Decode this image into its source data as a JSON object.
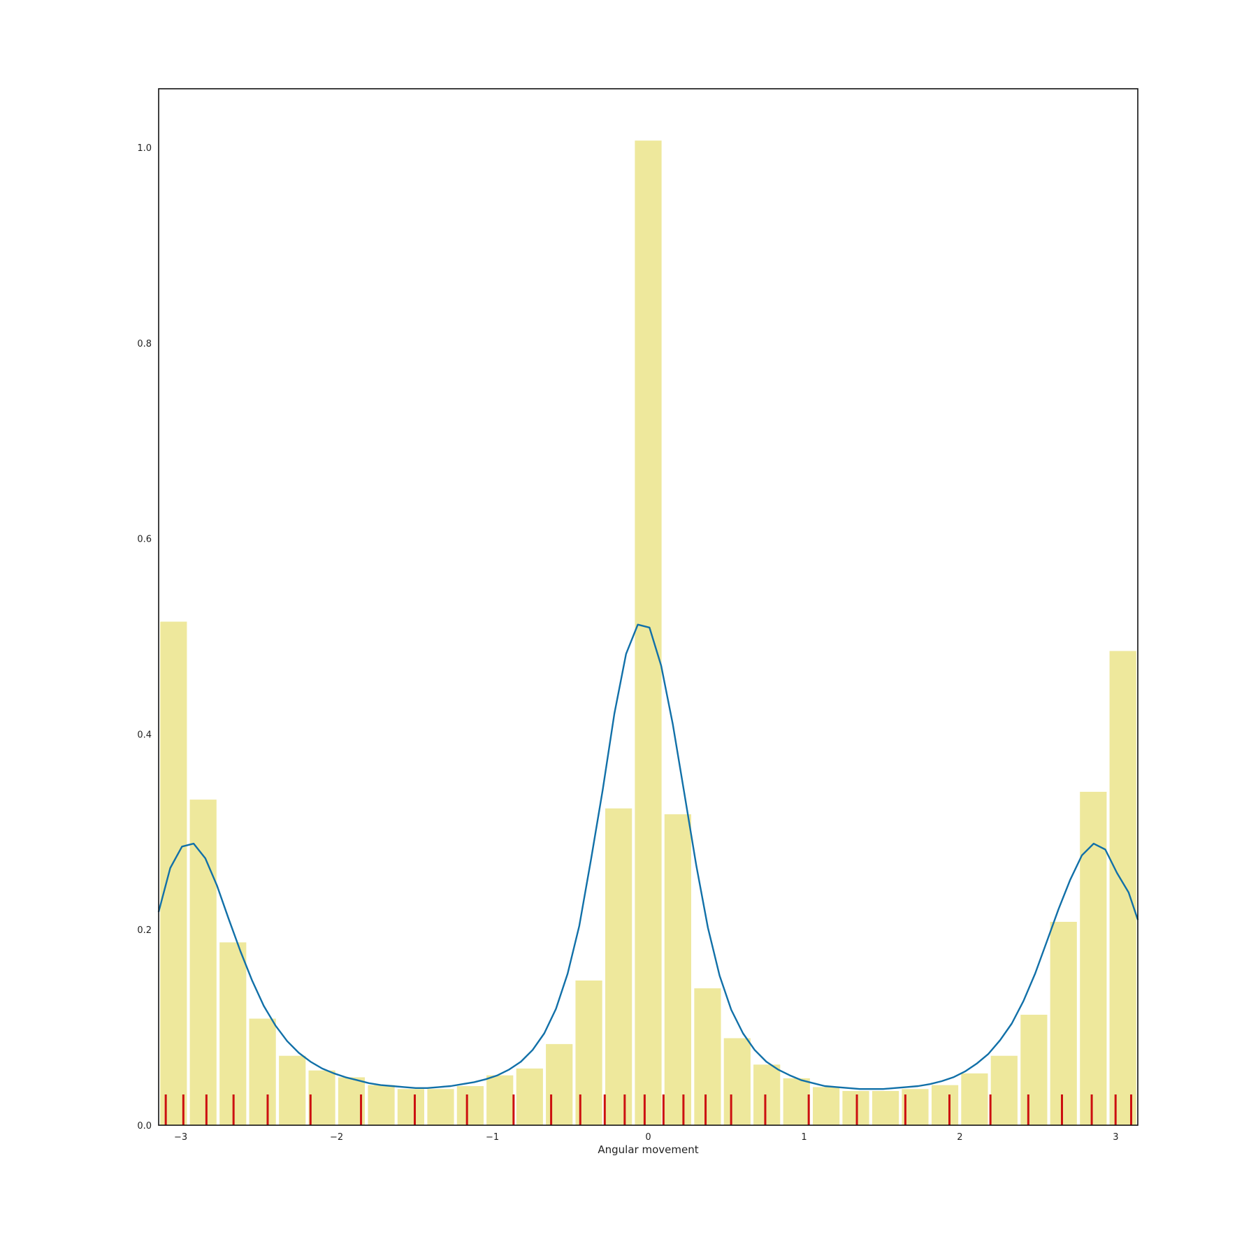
{
  "chart_data": {
    "type": "bar",
    "title": "",
    "xlabel": "Angular movement",
    "ylabel": "",
    "xlim": [
      -3.1416,
      3.1416
    ],
    "ylim": [
      0,
      1.06
    ],
    "grid": false,
    "xticks": [
      -3,
      -2,
      -1,
      0,
      1,
      2,
      3
    ],
    "xtick_labels": [
      "−3",
      "−2",
      "−1",
      "0",
      "1",
      "2",
      "3"
    ],
    "yticks": [
      0,
      0.2,
      0.4,
      0.6,
      0.8,
      1.0
    ],
    "ytick_labels": [
      "0.0",
      "0.2",
      "0.4",
      "0.6",
      "0.8",
      "1.0"
    ],
    "colors": {
      "bars": "#eee89c",
      "density_line": "#1170a8",
      "rug": "#cc1010"
    },
    "histogram": {
      "bin_width": 0.1904,
      "bar_fill": 0.9,
      "bin_centers": [
        -3.046,
        -2.856,
        -2.665,
        -2.475,
        -2.284,
        -2.094,
        -1.904,
        -1.713,
        -1.523,
        -1.332,
        -1.142,
        -0.952,
        -0.761,
        -0.571,
        -0.381,
        -0.19,
        0.0,
        0.19,
        0.381,
        0.571,
        0.761,
        0.952,
        1.142,
        1.332,
        1.523,
        1.713,
        1.904,
        2.094,
        2.284,
        2.475,
        2.665,
        2.856,
        3.046
      ],
      "values": [
        0.515,
        0.333,
        0.187,
        0.109,
        0.071,
        0.056,
        0.049,
        0.041,
        0.037,
        0.037,
        0.04,
        0.051,
        0.058,
        0.083,
        0.148,
        0.324,
        1.007,
        0.318,
        0.14,
        0.089,
        0.062,
        0.048,
        0.039,
        0.035,
        0.035,
        0.037,
        0.041,
        0.053,
        0.071,
        0.113,
        0.208,
        0.341,
        0.485
      ]
    },
    "density_line": {
      "x": [
        -3.142,
        -3.067,
        -2.992,
        -2.917,
        -2.842,
        -2.767,
        -2.692,
        -2.617,
        -2.542,
        -2.467,
        -2.392,
        -2.317,
        -2.242,
        -2.167,
        -2.092,
        -2.017,
        -1.942,
        -1.867,
        -1.792,
        -1.717,
        -1.642,
        -1.567,
        -1.492,
        -1.417,
        -1.342,
        -1.267,
        -1.192,
        -1.117,
        -1.042,
        -0.967,
        -0.892,
        -0.817,
        -0.742,
        -0.667,
        -0.592,
        -0.517,
        -0.442,
        -0.367,
        -0.292,
        -0.217,
        -0.142,
        -0.067,
        0.008,
        0.083,
        0.158,
        0.233,
        0.308,
        0.383,
        0.458,
        0.533,
        0.608,
        0.683,
        0.758,
        0.833,
        0.908,
        0.983,
        1.058,
        1.133,
        1.208,
        1.283,
        1.358,
        1.433,
        1.508,
        1.583,
        1.658,
        1.733,
        1.808,
        1.883,
        1.958,
        2.033,
        2.108,
        2.183,
        2.258,
        2.333,
        2.408,
        2.483,
        2.558,
        2.633,
        2.708,
        2.783,
        2.858,
        2.933,
        3.008,
        3.083,
        3.142
      ],
      "y": [
        0.218,
        0.263,
        0.285,
        0.288,
        0.273,
        0.245,
        0.211,
        0.178,
        0.148,
        0.122,
        0.102,
        0.086,
        0.074,
        0.065,
        0.058,
        0.053,
        0.049,
        0.046,
        0.043,
        0.041,
        0.04,
        0.039,
        0.038,
        0.038,
        0.039,
        0.04,
        0.042,
        0.044,
        0.047,
        0.051,
        0.057,
        0.065,
        0.077,
        0.094,
        0.119,
        0.155,
        0.204,
        0.272,
        0.343,
        0.421,
        0.482,
        0.512,
        0.509,
        0.47,
        0.41,
        0.338,
        0.266,
        0.202,
        0.153,
        0.118,
        0.094,
        0.077,
        0.065,
        0.057,
        0.051,
        0.046,
        0.043,
        0.04,
        0.039,
        0.038,
        0.037,
        0.037,
        0.037,
        0.038,
        0.039,
        0.04,
        0.042,
        0.045,
        0.049,
        0.055,
        0.063,
        0.073,
        0.087,
        0.104,
        0.127,
        0.155,
        0.188,
        0.221,
        0.251,
        0.276,
        0.288,
        0.282,
        0.258,
        0.238,
        0.21
      ]
    },
    "rug_x": [
      -3.096,
      -2.983,
      -2.835,
      -2.661,
      -2.442,
      -2.167,
      -1.843,
      -1.498,
      -1.163,
      -0.864,
      -0.623,
      -0.436,
      -0.279,
      -0.151,
      -0.023,
      0.098,
      0.226,
      0.368,
      0.532,
      0.751,
      1.03,
      1.339,
      1.65,
      1.933,
      2.196,
      2.439,
      2.655,
      2.846,
      2.999,
      3.099
    ]
  }
}
